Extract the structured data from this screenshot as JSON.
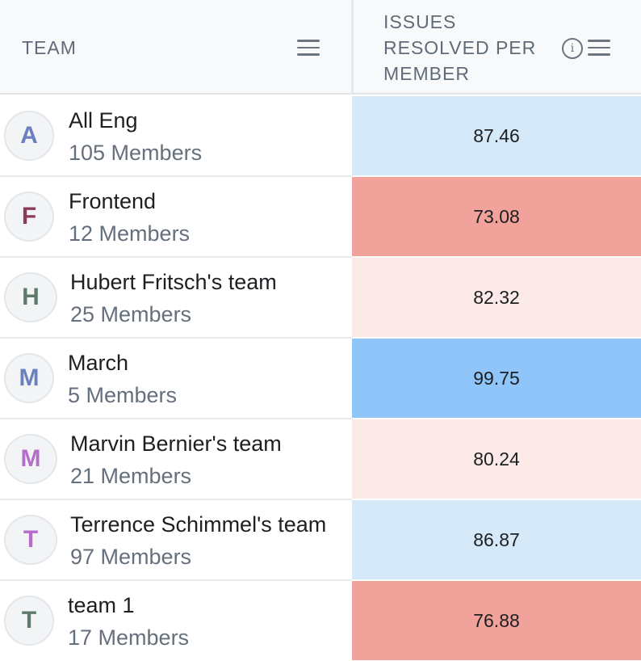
{
  "header": {
    "team_label": "TEAM",
    "metric_label": "ISSUES RESOLVED PER MEMBER",
    "team_menu_icon": "menu-icon",
    "metric_info_icon": "info-icon",
    "metric_menu_icon": "menu-icon",
    "info_glyph": "i"
  },
  "colors": {
    "light_blue": "#d6e9f9",
    "blue": "#8fc5f8",
    "light_red": "#fbeae8",
    "red": "#f0a29b"
  },
  "rows": [
    {
      "initial": "A",
      "name": "All Eng",
      "members": "105 Members",
      "value": "87.46",
      "initial_color": "#6c7fbf",
      "cell_color": "#d6e9f9"
    },
    {
      "initial": "F",
      "name": "Frontend",
      "members": "12 Members",
      "value": "73.08",
      "initial_color": "#8b3a5c",
      "cell_color": "#f0a29b"
    },
    {
      "initial": "H",
      "name": "Hubert Fritsch's team",
      "members": "25 Members",
      "value": "82.32",
      "initial_color": "#5e7a6c",
      "cell_color": "#fbeae8"
    },
    {
      "initial": "M",
      "name": "March",
      "members": "5 Members",
      "value": "99.75",
      "initial_color": "#6c7fbf",
      "cell_color": "#8fc5f8"
    },
    {
      "initial": "M",
      "name": "Marvin Bernier's team",
      "members": "21 Members",
      "value": "80.24",
      "initial_color": "#b46ec9",
      "cell_color": "#fbeae8"
    },
    {
      "initial": "T",
      "name": "Terrence Schimmel's team",
      "members": "97 Members",
      "value": "86.87",
      "initial_color": "#b46ec9",
      "cell_color": "#d6e9f9"
    },
    {
      "initial": "T",
      "name": "team 1",
      "members": "17 Members",
      "value": "76.88",
      "initial_color": "#5e7a6c",
      "cell_color": "#f0a29b"
    }
  ]
}
